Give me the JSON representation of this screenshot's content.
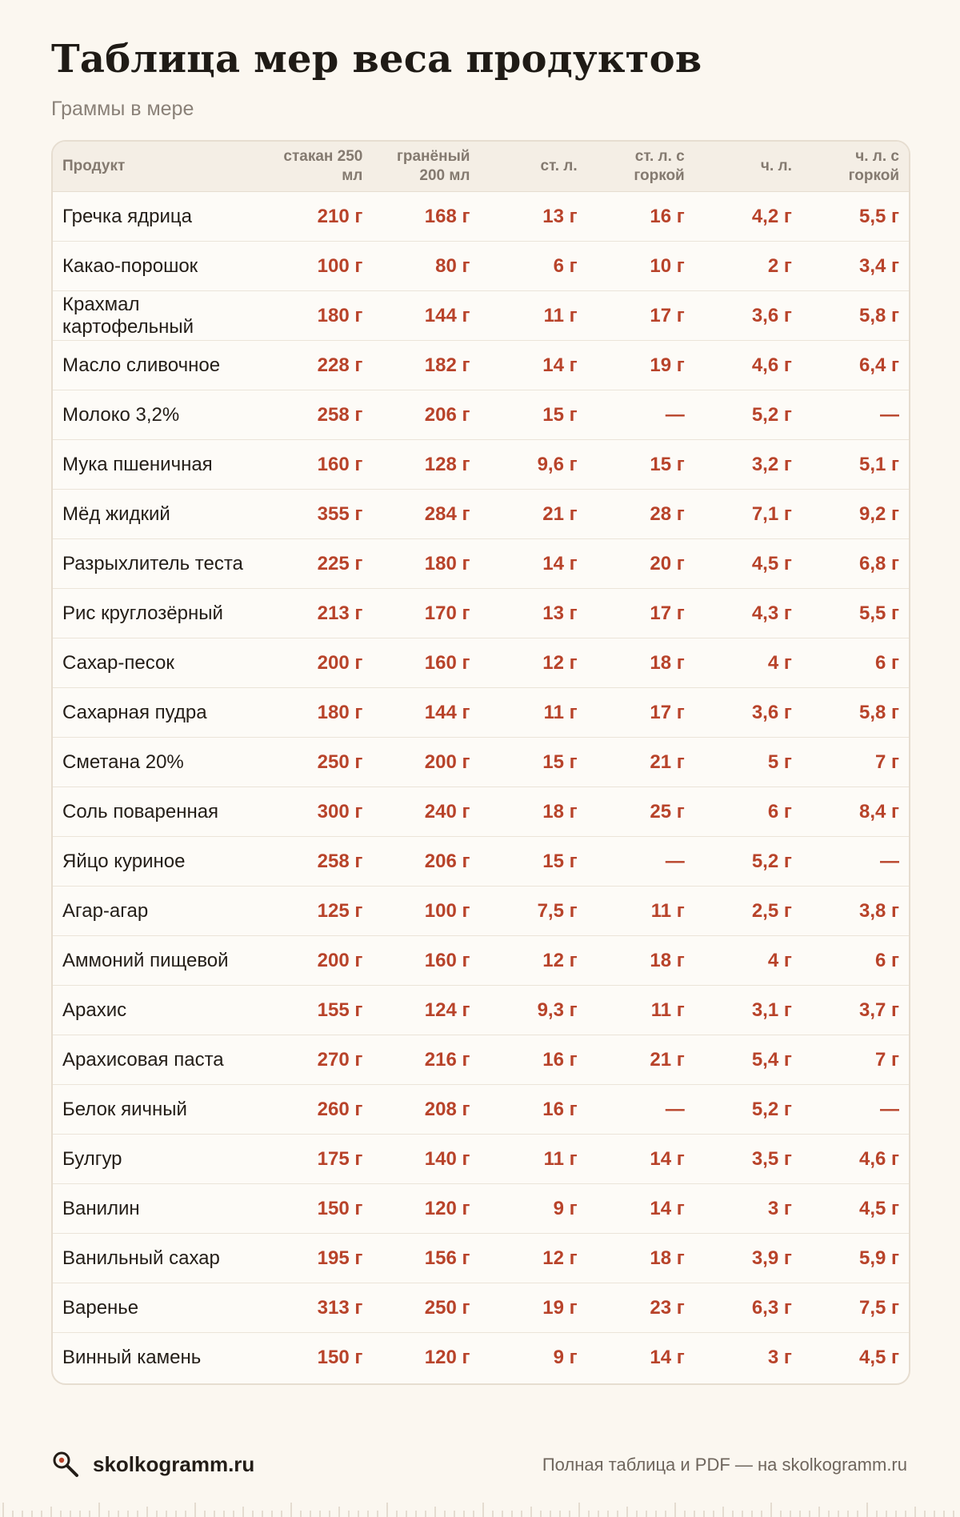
{
  "header": {
    "title": "Таблица мер веса продуктов",
    "subtitle": "Граммы в мере"
  },
  "table": {
    "columns": [
      "Продукт",
      "стакан 250 мл",
      "гранёный 200 мл",
      "ст. л.",
      "ст. л. с горкой",
      "ч. л.",
      "ч. л. с горкой"
    ],
    "rows": [
      [
        "Гречка ядрица",
        "210 г",
        "168 г",
        "13 г",
        "16 г",
        "4,2 г",
        "5,5 г"
      ],
      [
        "Какао-порошок",
        "100 г",
        "80 г",
        "6 г",
        "10 г",
        "2 г",
        "3,4 г"
      ],
      [
        "Крахмал картофельный",
        "180 г",
        "144 г",
        "11 г",
        "17 г",
        "3,6 г",
        "5,8 г"
      ],
      [
        "Масло сливочное",
        "228 г",
        "182 г",
        "14 г",
        "19 г",
        "4,6 г",
        "6,4 г"
      ],
      [
        "Молоко 3,2%",
        "258 г",
        "206 г",
        "15 г",
        "—",
        "5,2 г",
        "—"
      ],
      [
        "Мука пшеничная",
        "160 г",
        "128 г",
        "9,6 г",
        "15 г",
        "3,2 г",
        "5,1 г"
      ],
      [
        "Мёд жидкий",
        "355 г",
        "284 г",
        "21 г",
        "28 г",
        "7,1 г",
        "9,2 г"
      ],
      [
        "Разрыхлитель теста",
        "225 г",
        "180 г",
        "14 г",
        "20 г",
        "4,5 г",
        "6,8 г"
      ],
      [
        "Рис круглозёрный",
        "213 г",
        "170 г",
        "13 г",
        "17 г",
        "4,3 г",
        "5,5 г"
      ],
      [
        "Сахар-песок",
        "200 г",
        "160 г",
        "12 г",
        "18 г",
        "4 г",
        "6 г"
      ],
      [
        "Сахарная пудра",
        "180 г",
        "144 г",
        "11 г",
        "17 г",
        "3,6 г",
        "5,8 г"
      ],
      [
        "Сметана 20%",
        "250 г",
        "200 г",
        "15 г",
        "21 г",
        "5 г",
        "7 г"
      ],
      [
        "Соль поваренная",
        "300 г",
        "240 г",
        "18 г",
        "25 г",
        "6 г",
        "8,4 г"
      ],
      [
        "Яйцо куриное",
        "258 г",
        "206 г",
        "15 г",
        "—",
        "5,2 г",
        "—"
      ],
      [
        "Агар-агар",
        "125 г",
        "100 г",
        "7,5 г",
        "11 г",
        "2,5 г",
        "3,8 г"
      ],
      [
        "Аммоний пищевой",
        "200 г",
        "160 г",
        "12 г",
        "18 г",
        "4 г",
        "6 г"
      ],
      [
        "Арахис",
        "155 г",
        "124 г",
        "9,3 г",
        "11 г",
        "3,1 г",
        "3,7 г"
      ],
      [
        "Арахисовая паста",
        "270 г",
        "216 г",
        "16 г",
        "21 г",
        "5,4 г",
        "7 г"
      ],
      [
        "Белок яичный",
        "260 г",
        "208 г",
        "16 г",
        "—",
        "5,2 г",
        "—"
      ],
      [
        "Булгур",
        "175 г",
        "140 г",
        "11 г",
        "14 г",
        "3,5 г",
        "4,6 г"
      ],
      [
        "Ванилин",
        "150 г",
        "120 г",
        "9 г",
        "14 г",
        "3 г",
        "4,5 г"
      ],
      [
        "Ванильный сахар",
        "195 г",
        "156 г",
        "12 г",
        "18 г",
        "3,9 г",
        "5,9 г"
      ],
      [
        "Варенье",
        "313 г",
        "250 г",
        "19 г",
        "23 г",
        "6,3 г",
        "7,5 г"
      ],
      [
        "Винный камень",
        "150 г",
        "120 г",
        "9 г",
        "14 г",
        "3 г",
        "4,5 г"
      ]
    ]
  },
  "footer": {
    "brand_icon": "magnifier-icon",
    "brand": "skolkogramm.ru",
    "note": "Полная таблица и PDF — на skolkogramm.ru"
  },
  "colors": {
    "background": "#fbf7f0",
    "value_accent": "#b8432a",
    "header_bg": "#f4eee5",
    "border": "#e6ddd0"
  }
}
